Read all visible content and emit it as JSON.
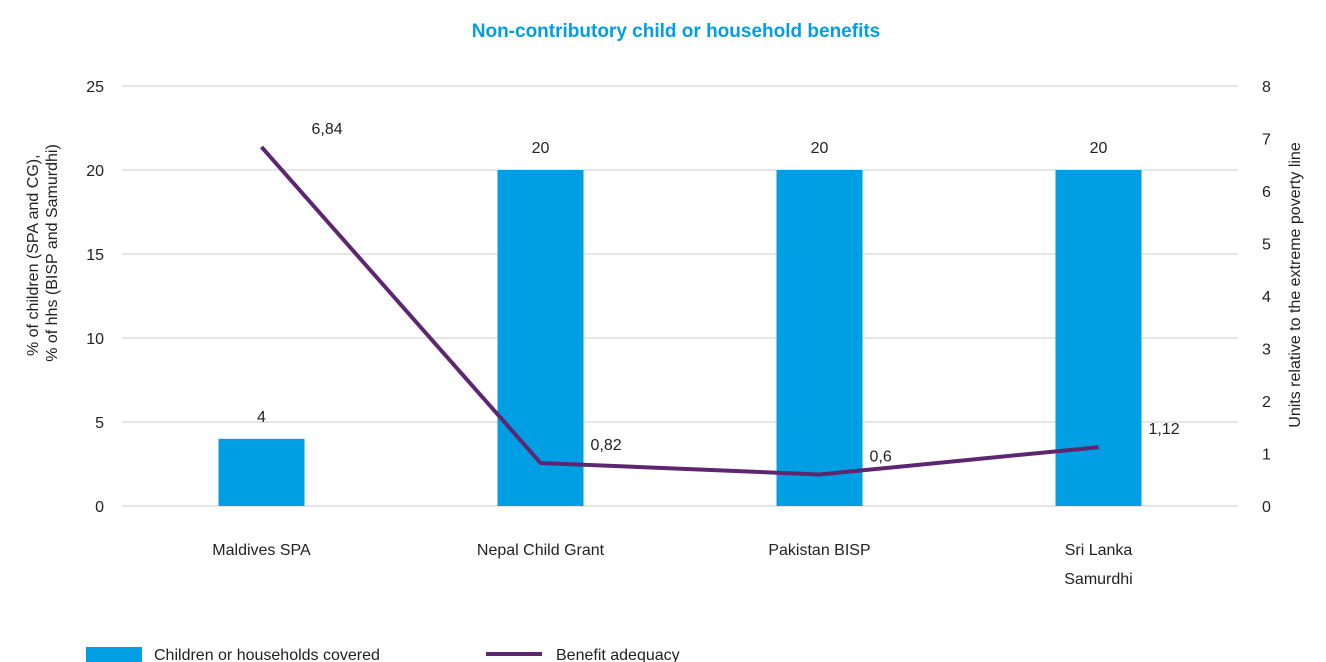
{
  "chart_data": {
    "type": "bar+line",
    "title": "Non-contributory child or household benefits",
    "categories": [
      "Maldives SPA",
      "Nepal Child Grant",
      "Pakistan BISP",
      "Sri Lanka Samurdhi"
    ],
    "category_lines": [
      [
        "Maldives SPA"
      ],
      [
        "Nepal Child Grant"
      ],
      [
        "Pakistan BISP"
      ],
      [
        "Sri Lanka",
        "Samurdhi"
      ]
    ],
    "series": [
      {
        "name": "Children or households covered",
        "kind": "bar",
        "axis": "left",
        "color": "#009FE3",
        "values": [
          4,
          20,
          20,
          20
        ],
        "labels": [
          "4",
          "20",
          "20",
          "20"
        ]
      },
      {
        "name": "Benefit adequacy",
        "kind": "line",
        "axis": "right",
        "color": "#5E2670",
        "values": [
          6.84,
          0.82,
          0.6,
          1.12
        ],
        "labels": [
          "6,84",
          "0,82",
          "0,6",
          "1,12"
        ]
      }
    ],
    "y_left": {
      "label_lines": [
        "% of children (SPA and CG),",
        "% of hhs (BISP and Samurdhi)"
      ],
      "range": [
        0,
        25
      ],
      "ticks": [
        0,
        5,
        10,
        15,
        20,
        25
      ]
    },
    "y_right": {
      "label": "Units relative to the extreme poverty line",
      "range": [
        0,
        8
      ],
      "ticks": [
        0,
        1,
        2,
        3,
        4,
        5,
        6,
        7,
        8
      ]
    },
    "grid": true,
    "legend_position": "bottom-left",
    "colors": {
      "title": "#009FE3",
      "grid": "#cccccc",
      "text": "#222222"
    }
  }
}
